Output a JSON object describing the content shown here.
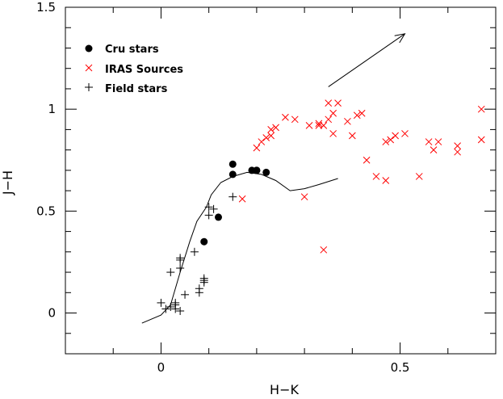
{
  "chart_data": {
    "type": "scatter",
    "title": "",
    "xlabel": "H−K",
    "ylabel": "J−H",
    "xlim": [
      -0.2,
      0.7
    ],
    "ylim": [
      -0.2,
      1.5
    ],
    "xticks": [
      0,
      0.5
    ],
    "xtick_labels": [
      "0",
      "0.5"
    ],
    "yticks": [
      0,
      0.5,
      1,
      1.5
    ],
    "ytick_labels": [
      "0",
      "0.5",
      "1",
      "1.5"
    ],
    "legend": {
      "position": "top-left"
    },
    "series": [
      {
        "name": "Cru stars",
        "marker": "filled-circle",
        "color": "#000000",
        "points": [
          [
            0.09,
            0.35
          ],
          [
            0.12,
            0.47
          ],
          [
            0.15,
            0.68
          ],
          [
            0.15,
            0.73
          ],
          [
            0.19,
            0.7
          ],
          [
            0.2,
            0.7
          ],
          [
            0.2,
            0.7
          ],
          [
            0.22,
            0.69
          ]
        ]
      },
      {
        "name": "IRAS Sources",
        "marker": "x",
        "color": "#ff0000",
        "points": [
          [
            0.17,
            0.56
          ],
          [
            0.2,
            0.81
          ],
          [
            0.21,
            0.84
          ],
          [
            0.22,
            0.86
          ],
          [
            0.23,
            0.87
          ],
          [
            0.23,
            0.9
          ],
          [
            0.24,
            0.91
          ],
          [
            0.26,
            0.96
          ],
          [
            0.28,
            0.95
          ],
          [
            0.3,
            0.57
          ],
          [
            0.31,
            0.92
          ],
          [
            0.33,
            0.92
          ],
          [
            0.33,
            0.93
          ],
          [
            0.34,
            0.92
          ],
          [
            0.34,
            0.31
          ],
          [
            0.35,
            0.95
          ],
          [
            0.35,
            1.03
          ],
          [
            0.36,
            0.98
          ],
          [
            0.36,
            0.88
          ],
          [
            0.37,
            1.03
          ],
          [
            0.39,
            0.94
          ],
          [
            0.4,
            0.87
          ],
          [
            0.41,
            0.97
          ],
          [
            0.42,
            0.98
          ],
          [
            0.43,
            0.75
          ],
          [
            0.45,
            0.67
          ],
          [
            0.47,
            0.84
          ],
          [
            0.47,
            0.65
          ],
          [
            0.48,
            0.85
          ],
          [
            0.49,
            0.87
          ],
          [
            0.51,
            0.88
          ],
          [
            0.54,
            0.67
          ],
          [
            0.56,
            0.84
          ],
          [
            0.57,
            0.8
          ],
          [
            0.58,
            0.84
          ],
          [
            0.62,
            0.82
          ],
          [
            0.62,
            0.79
          ],
          [
            0.67,
            1.0
          ],
          [
            0.67,
            0.85
          ]
        ]
      },
      {
        "name": "Field stars",
        "marker": "plus",
        "color": "#000000",
        "points": [
          [
            0,
            0.05
          ],
          [
            0.01,
            0.02
          ],
          [
            0.02,
            0.03
          ],
          [
            0.02,
            0.2
          ],
          [
            0.03,
            0.02
          ],
          [
            0.03,
            0.04
          ],
          [
            0.03,
            0.05
          ],
          [
            0.04,
            0.01
          ],
          [
            0.04,
            0.22
          ],
          [
            0.04,
            0.26
          ],
          [
            0.04,
            0.27
          ],
          [
            0.05,
            0.09
          ],
          [
            0.07,
            0.3
          ],
          [
            0.08,
            0.1
          ],
          [
            0.08,
            0.12
          ],
          [
            0.09,
            0.15
          ],
          [
            0.09,
            0.16
          ],
          [
            0.09,
            0.17
          ],
          [
            0.1,
            0.48
          ],
          [
            0.1,
            0.52
          ],
          [
            0.11,
            0.51
          ],
          [
            0.15,
            0.57
          ]
        ]
      }
    ],
    "curve": {
      "points": [
        [
          -0.04,
          -0.05
        ],
        [
          0,
          -0.01
        ],
        [
          0.02,
          0.04
        ],
        [
          0.04,
          0.2
        ],
        [
          0.06,
          0.35
        ],
        [
          0.075,
          0.45
        ],
        [
          0.095,
          0.52
        ],
        [
          0.105,
          0.58
        ],
        [
          0.125,
          0.64
        ],
        [
          0.15,
          0.67
        ],
        [
          0.18,
          0.69
        ],
        [
          0.21,
          0.68
        ],
        [
          0.24,
          0.65
        ],
        [
          0.27,
          0.6
        ],
        [
          0.3,
          0.61
        ],
        [
          0.33,
          0.63
        ],
        [
          0.37,
          0.66
        ]
      ]
    },
    "reddening_arrow": {
      "from": [
        0.35,
        1.11
      ],
      "to": [
        0.51,
        1.37
      ]
    }
  }
}
